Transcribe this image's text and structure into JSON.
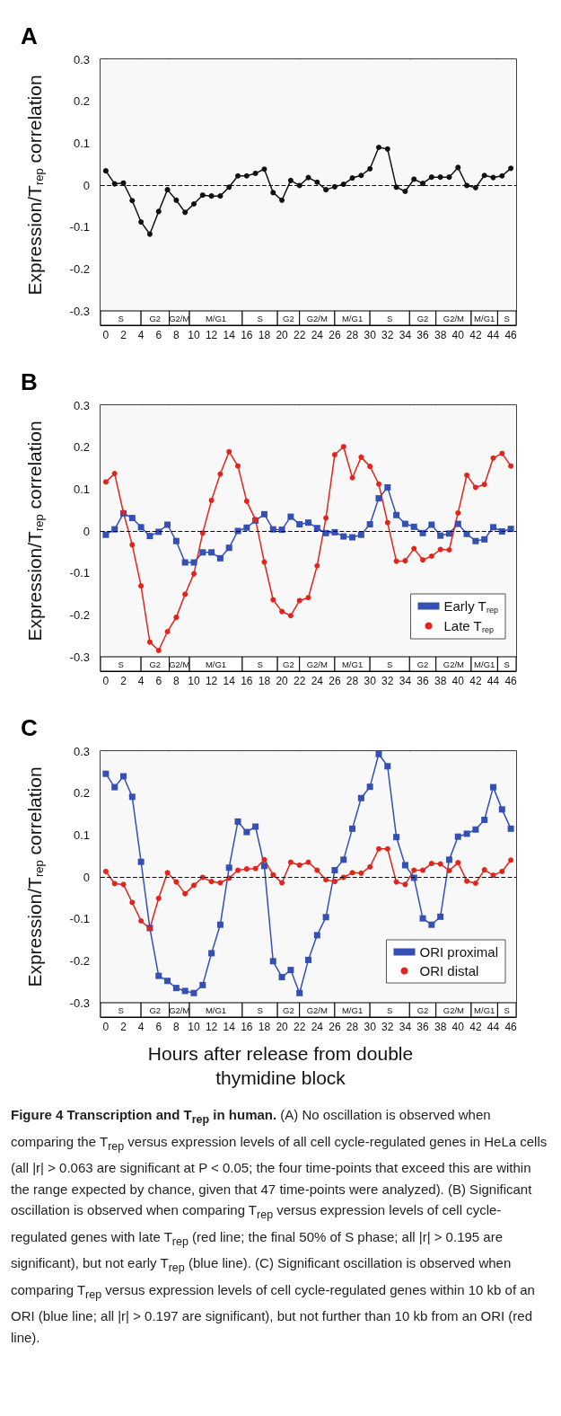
{
  "chart_data": [
    {
      "type": "line",
      "title": "A",
      "ylabel": "Expression/T$_{rep}$ correlation",
      "xlim": [
        -0.6,
        46.6
      ],
      "xticks": [
        0,
        2,
        4,
        6,
        8,
        10,
        12,
        14,
        16,
        18,
        20,
        22,
        24,
        26,
        28,
        30,
        32,
        34,
        36,
        38,
        40,
        42,
        44,
        46
      ],
      "ylim": [
        -0.3,
        0.3
      ],
      "yticks": [
        -0.3,
        -0.2,
        -0.1,
        0,
        0.1,
        0.2,
        0.3
      ],
      "x": [
        0,
        1,
        2,
        3,
        4,
        5,
        6,
        7,
        8,
        9,
        10,
        11,
        12,
        13,
        14,
        15,
        16,
        17,
        18,
        19,
        20,
        21,
        22,
        23,
        24,
        25,
        26,
        27,
        28,
        29,
        30,
        31,
        32,
        33,
        34,
        35,
        36,
        37,
        38,
        39,
        40,
        41,
        42,
        43,
        44,
        45,
        46
      ],
      "series": [
        {
          "color": "#111111",
          "marker": "circle",
          "values": [
            0.034,
            0.003,
            0.005,
            -0.037,
            -0.088,
            -0.117,
            -0.063,
            -0.011,
            -0.036,
            -0.065,
            -0.045,
            -0.024,
            -0.026,
            -0.026,
            -0.005,
            0.022,
            0.022,
            0.028,
            0.038,
            -0.018,
            -0.036,
            0.011,
            -0.001,
            0.018,
            0.007,
            -0.011,
            -0.004,
            0.002,
            0.017,
            0.023,
            0.039,
            0.09,
            0.086,
            -0.005,
            -0.015,
            0.014,
            0.004,
            0.019,
            0.019,
            0.019,
            0.042,
            -0.001,
            -0.006,
            0.023,
            0.018,
            0.022,
            0.04
          ]
        }
      ],
      "ref_lines": [
        {
          "axis": "y",
          "value": 0,
          "label": null,
          "color": "#000000",
          "line_style": "dashed"
        }
      ],
      "bands": [
        {
          "axis": "x",
          "from": -0.6,
          "to": 4,
          "label": "S"
        },
        {
          "axis": "x",
          "from": 4,
          "to": 7.2,
          "label": "G2"
        },
        {
          "axis": "x",
          "from": 7.2,
          "to": 9.5,
          "label": "G2/M"
        },
        {
          "axis": "x",
          "from": 9.5,
          "to": 15.5,
          "label": "M/G1"
        },
        {
          "axis": "x",
          "from": 15.5,
          "to": 19.5,
          "label": "S"
        },
        {
          "axis": "x",
          "from": 19.5,
          "to": 22,
          "label": "G2"
        },
        {
          "axis": "x",
          "from": 22,
          "to": 26,
          "label": "G2/M"
        },
        {
          "axis": "x",
          "from": 26,
          "to": 30,
          "label": "M/G1"
        },
        {
          "axis": "x",
          "from": 30,
          "to": 34.5,
          "label": "S"
        },
        {
          "axis": "x",
          "from": 34.5,
          "to": 37.5,
          "label": "G2"
        },
        {
          "axis": "x",
          "from": 37.5,
          "to": 41.5,
          "label": "G2/M"
        },
        {
          "axis": "x",
          "from": 41.5,
          "to": 44.5,
          "label": "M/G1"
        },
        {
          "axis": "x",
          "from": 44.5,
          "to": 46.6,
          "label": "S"
        }
      ]
    },
    {
      "type": "line",
      "title": "B",
      "ylabel": "Expression/T$_{rep}$ correlation",
      "legend": "bottom right",
      "xlim": [
        -0.6,
        46.6
      ],
      "xticks": [
        0,
        2,
        4,
        6,
        8,
        10,
        12,
        14,
        16,
        18,
        20,
        22,
        24,
        26,
        28,
        30,
        32,
        34,
        36,
        38,
        40,
        42,
        44,
        46
      ],
      "ylim": [
        -0.3,
        0.3
      ],
      "yticks": [
        -0.3,
        -0.2,
        -0.1,
        0,
        0.1,
        0.2,
        0.3
      ],
      "x": [
        0,
        1,
        2,
        3,
        4,
        5,
        6,
        7,
        8,
        9,
        10,
        11,
        12,
        13,
        14,
        15,
        16,
        17,
        18,
        19,
        20,
        21,
        22,
        23,
        24,
        25,
        26,
        27,
        28,
        29,
        30,
        31,
        32,
        33,
        34,
        35,
        36,
        37,
        38,
        39,
        40,
        41,
        42,
        43,
        44,
        45,
        46
      ],
      "series": [
        {
          "name": "Early T$_{rep}$",
          "color": "#3550b4",
          "marker": "square",
          "values": [
            -0.009,
            0.004,
            0.042,
            0.031,
            0.009,
            -0.012,
            -0.002,
            0.015,
            -0.024,
            -0.075,
            -0.075,
            -0.051,
            -0.051,
            -0.065,
            -0.04,
            0,
            0.008,
            0.025,
            0.04,
            0.004,
            0.003,
            0.034,
            0.016,
            0.02,
            0.007,
            -0.005,
            -0.003,
            -0.013,
            -0.015,
            -0.009,
            0.016,
            0.078,
            0.104,
            0.038,
            0.017,
            0.01,
            -0.005,
            0.015,
            -0.011,
            -0.006,
            0.017,
            -0.007,
            -0.024,
            -0.02,
            0.009,
            -0.001,
            0.005
          ]
        },
        {
          "name": "Late T$_{rep}$",
          "color": "#e3241c",
          "marker": "circle",
          "values": [
            0.117,
            0.137,
            0.044,
            -0.033,
            -0.131,
            -0.265,
            -0.285,
            -0.24,
            -0.206,
            -0.151,
            -0.102,
            -0.005,
            0.073,
            0.136,
            0.189,
            0.155,
            0.071,
            0.027,
            -0.074,
            -0.164,
            -0.192,
            -0.202,
            -0.166,
            -0.159,
            -0.083,
            0.031,
            0.182,
            0.201,
            0.127,
            0.176,
            0.154,
            0.112,
            0.02,
            -0.072,
            -0.071,
            -0.042,
            -0.069,
            -0.06,
            -0.044,
            -0.045,
            0.043,
            0.133,
            0.104,
            0.111,
            0.174,
            0.185,
            0.155
          ]
        }
      ],
      "ref_lines": [
        {
          "axis": "y",
          "value": 0,
          "label": null,
          "color": "#000000",
          "line_style": "dashed"
        }
      ],
      "bands": [
        {
          "axis": "x",
          "from": -0.6,
          "to": 4,
          "label": "S"
        },
        {
          "axis": "x",
          "from": 4,
          "to": 7.2,
          "label": "G2"
        },
        {
          "axis": "x",
          "from": 7.2,
          "to": 9.5,
          "label": "G2/M"
        },
        {
          "axis": "x",
          "from": 9.5,
          "to": 15.5,
          "label": "M/G1"
        },
        {
          "axis": "x",
          "from": 15.5,
          "to": 19.5,
          "label": "S"
        },
        {
          "axis": "x",
          "from": 19.5,
          "to": 22,
          "label": "G2"
        },
        {
          "axis": "x",
          "from": 22,
          "to": 26,
          "label": "G2/M"
        },
        {
          "axis": "x",
          "from": 26,
          "to": 30,
          "label": "M/G1"
        },
        {
          "axis": "x",
          "from": 30,
          "to": 34.5,
          "label": "S"
        },
        {
          "axis": "x",
          "from": 34.5,
          "to": 37.5,
          "label": "G2"
        },
        {
          "axis": "x",
          "from": 37.5,
          "to": 41.5,
          "label": "G2/M"
        },
        {
          "axis": "x",
          "from": 41.5,
          "to": 44.5,
          "label": "M/G1"
        },
        {
          "axis": "x",
          "from": 44.5,
          "to": 46.6,
          "label": "S"
        }
      ]
    },
    {
      "type": "line",
      "title": "C",
      "ylabel": "Expression/T$_{rep}$ correlation",
      "xlabel": "Hours after release from double thymidine block",
      "legend": "bottom right",
      "xlim": [
        -0.6,
        46.6
      ],
      "xticks": [
        0,
        2,
        4,
        6,
        8,
        10,
        12,
        14,
        16,
        18,
        20,
        22,
        24,
        26,
        28,
        30,
        32,
        34,
        36,
        38,
        40,
        42,
        44,
        46
      ],
      "ylim": [
        -0.3,
        0.3
      ],
      "yticks": [
        -0.3,
        -0.2,
        -0.1,
        0,
        0.1,
        0.2,
        0.3
      ],
      "x": [
        0,
        1,
        2,
        3,
        4,
        5,
        6,
        7,
        8,
        9,
        10,
        11,
        12,
        13,
        14,
        15,
        16,
        17,
        18,
        19,
        20,
        21,
        22,
        23,
        24,
        25,
        26,
        27,
        28,
        29,
        30,
        31,
        32,
        33,
        34,
        35,
        36,
        37,
        38,
        39,
        40,
        41,
        42,
        43,
        44,
        45,
        46
      ],
      "series": [
        {
          "name": "ORI proximal",
          "color": "#3550b4",
          "marker": "square",
          "values": [
            0.246,
            0.214,
            0.24,
            0.191,
            0.036,
            -0.122,
            -0.236,
            -0.248,
            -0.265,
            -0.272,
            -0.277,
            -0.258,
            -0.182,
            -0.114,
            0.022,
            0.132,
            0.107,
            0.12,
            0.026,
            -0.201,
            -0.239,
            -0.222,
            -0.277,
            -0.198,
            -0.139,
            -0.096,
            0.016,
            0.041,
            0.115,
            0.188,
            0.215,
            0.293,
            0.264,
            0.095,
            0.028,
            -0.002,
            -0.099,
            -0.114,
            -0.095,
            0.041,
            0.096,
            0.103,
            0.113,
            0.136,
            0.214,
            0.161,
            0.115
          ]
        },
        {
          "name": "ORI distal",
          "color": "#e3241c",
          "marker": "circle",
          "values": [
            0.013,
            -0.016,
            -0.018,
            -0.061,
            -0.105,
            -0.123,
            -0.051,
            0.01,
            -0.012,
            -0.04,
            -0.02,
            -0.001,
            -0.011,
            -0.014,
            -0.003,
            0.016,
            0.019,
            0.02,
            0.041,
            0.005,
            -0.014,
            0.035,
            0.028,
            0.035,
            0.016,
            -0.007,
            -0.011,
            -0.001,
            0.01,
            0.009,
            0.024,
            0.067,
            0.067,
            -0.012,
            -0.018,
            0.016,
            0.016,
            0.032,
            0.031,
            0.015,
            0.034,
            -0.01,
            -0.015,
            0.017,
            0.004,
            0.013,
            0.04
          ]
        }
      ],
      "ref_lines": [
        {
          "axis": "y",
          "value": 0,
          "label": null,
          "color": "#000000",
          "line_style": "dashed"
        }
      ],
      "bands": [
        {
          "axis": "x",
          "from": -0.6,
          "to": 4,
          "label": "S"
        },
        {
          "axis": "x",
          "from": 4,
          "to": 7.2,
          "label": "G2"
        },
        {
          "axis": "x",
          "from": 7.2,
          "to": 9.5,
          "label": "G2/M"
        },
        {
          "axis": "x",
          "from": 9.5,
          "to": 15.5,
          "label": "M/G1"
        },
        {
          "axis": "x",
          "from": 15.5,
          "to": 19.5,
          "label": "S"
        },
        {
          "axis": "x",
          "from": 19.5,
          "to": 22,
          "label": "G2"
        },
        {
          "axis": "x",
          "from": 22,
          "to": 26,
          "label": "G2/M"
        },
        {
          "axis": "x",
          "from": 26,
          "to": 30,
          "label": "M/G1"
        },
        {
          "axis": "x",
          "from": 30,
          "to": 34.5,
          "label": "S"
        },
        {
          "axis": "x",
          "from": 34.5,
          "to": 37.5,
          "label": "G2"
        },
        {
          "axis": "x",
          "from": 37.5,
          "to": 41.5,
          "label": "G2/M"
        },
        {
          "axis": "x",
          "from": 41.5,
          "to": 44.5,
          "label": "M/G1"
        },
        {
          "axis": "x",
          "from": 44.5,
          "to": 46.6,
          "label": "S"
        }
      ],
      "annotations": [
        "Figure 4 Transcription and T$_{rep}$ in human.",
        "(A) No oscillation is observed when comparing the T$_{rep}$ versus expression levels of all cell cycle-regulated genes in HeLa cells (all |r| > 0.063 are significant at P < 0.05; the four time-points that exceed this are within the range expected by chance, given that 47 time-points were analyzed). (B) Significant oscillation is observed when comparing T$_{rep}$ versus expression levels of cell cycle-regulated genes with late T$_{rep}$ (red line; the final 50% of S phase; all |r| > 0.195 are significant), but not early T$_{rep}$ (blue line). (C) Significant oscillation is observed when comparing T$_{rep}$ versus expression levels of cell cycle-regulated genes within 10 kb of an ORI (blue line; all |r| > 0.197 are significant), but not further than 10 kb from an ORI (red line)."
      ]
    }
  ]
}
